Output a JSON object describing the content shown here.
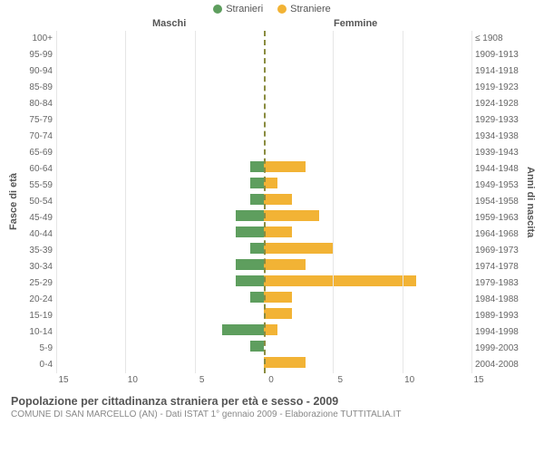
{
  "chart": {
    "type": "bar-pyramid",
    "legend": [
      {
        "label": "Stranieri",
        "color": "#5e9e5e"
      },
      {
        "label": "Straniere",
        "color": "#f2b335"
      }
    ],
    "section_left": "Maschi",
    "section_right": "Femmine",
    "yaxis_left_title": "Fasce di età",
    "yaxis_right_title": "Anni di nascita",
    "age_groups": [
      "100+",
      "95-99",
      "90-94",
      "85-89",
      "80-84",
      "75-79",
      "70-74",
      "65-69",
      "60-64",
      "55-59",
      "50-54",
      "45-49",
      "40-44",
      "35-39",
      "30-34",
      "25-29",
      "20-24",
      "15-19",
      "10-14",
      "5-9",
      "0-4"
    ],
    "birth_years": [
      "≤ 1908",
      "1909-1913",
      "1914-1918",
      "1919-1923",
      "1924-1928",
      "1929-1933",
      "1934-1938",
      "1939-1943",
      "1944-1948",
      "1949-1953",
      "1954-1958",
      "1959-1963",
      "1964-1968",
      "1969-1973",
      "1974-1978",
      "1979-1983",
      "1984-1988",
      "1989-1993",
      "1994-1998",
      "1999-2003",
      "2004-2008"
    ],
    "male_values": [
      0,
      0,
      0,
      0,
      0,
      0,
      0,
      0,
      1,
      1,
      1,
      2,
      2,
      1,
      2,
      2,
      1,
      0,
      3,
      1,
      0
    ],
    "female_values": [
      0,
      0,
      0,
      0,
      0,
      0,
      0,
      0,
      3,
      1,
      2,
      4,
      2,
      5,
      3,
      11,
      2,
      2,
      1,
      0,
      3
    ],
    "xlim": 15,
    "xticks": [
      15,
      10,
      5,
      0,
      5,
      10,
      15
    ],
    "grid_color": "#e6e6e6",
    "centerline_color": "#8a8c40",
    "bar_color_left": "#5e9e5e",
    "bar_color_right": "#f2b335",
    "label_fontsize": 10,
    "background_color": "#ffffff"
  },
  "footer": {
    "title": "Popolazione per cittadinanza straniera per età e sesso - 2009",
    "subtitle": "COMUNE DI SAN MARCELLO (AN) - Dati ISTAT 1° gennaio 2009 - Elaborazione TUTTITALIA.IT"
  }
}
